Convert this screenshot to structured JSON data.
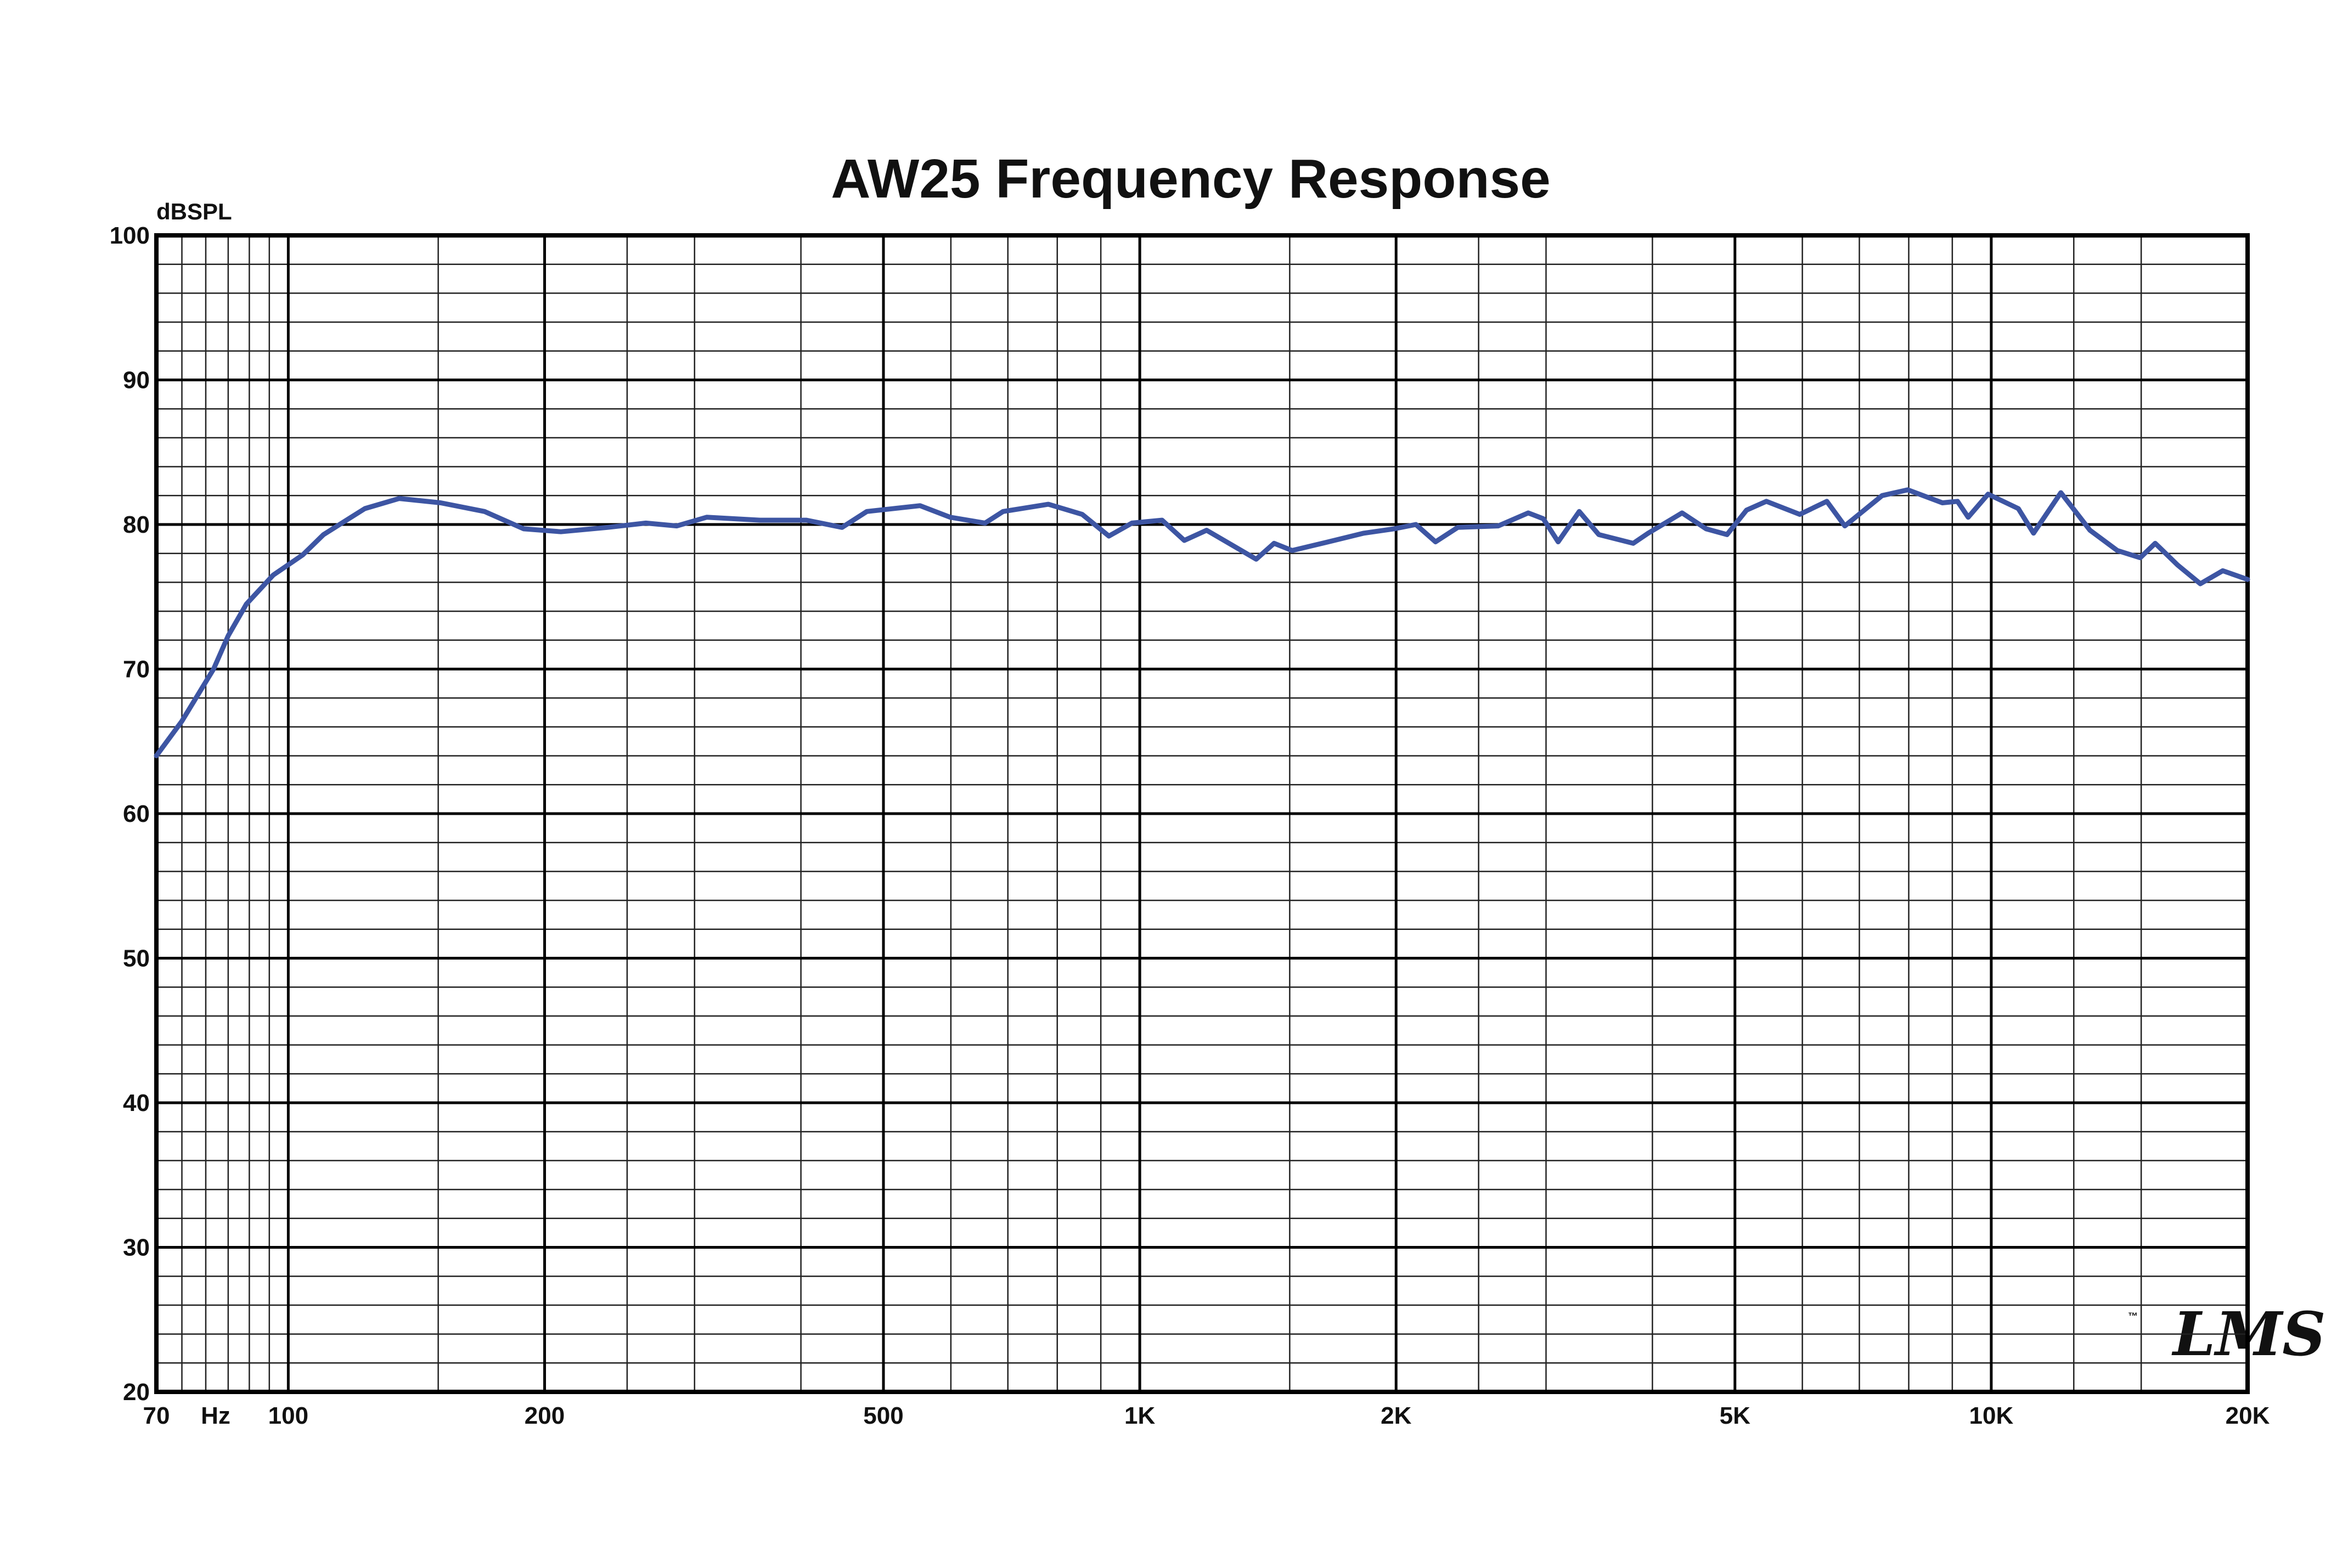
{
  "chart_data": {
    "type": "line",
    "title": "AW25 Frequency Response",
    "y_label": "dBSPL",
    "x_unit": "Hz",
    "logo": "LMS",
    "logo_mark": "™",
    "log_x": true,
    "grid": true,
    "color": "#3d55a3",
    "x": [
      70,
      75,
      81.7,
      85,
      89.3,
      96,
      104,
      110,
      123,
      135,
      151,
      170,
      189,
      209,
      237,
      263,
      286,
      310,
      358,
      406,
      447,
      478,
      552,
      599,
      658,
      691,
      781,
      856,
      920,
      979,
      1062,
      1128,
      1198,
      1370,
      1438,
      1510,
      1692,
      1833,
      1988,
      2110,
      2225,
      2363,
      2636,
      2859,
      2978,
      3100,
      3282,
      3460,
      3798,
      3955,
      4334,
      4625,
      4894,
      5160,
      5444,
      5958,
      6410,
      6730,
      7445,
      7979,
      8763,
      9128,
      9395,
      9914,
      10760,
      11210,
      12070,
      13060,
      14060,
      14960,
      15580,
      16550,
      17600,
      18700,
      20000
    ],
    "values": [
      64.0,
      66.4,
      70.0,
      72.3,
      74.5,
      76.5,
      77.9,
      79.3,
      81.1,
      81.8,
      81.5,
      80.9,
      79.7,
      79.5,
      79.8,
      80.1,
      79.9,
      80.5,
      80.3,
      80.3,
      79.8,
      80.9,
      81.3,
      80.5,
      80.1,
      80.9,
      81.4,
      80.7,
      79.2,
      80.1,
      80.3,
      78.9,
      79.6,
      77.6,
      78.7,
      78.2,
      78.9,
      79.4,
      79.7,
      80.0,
      78.8,
      79.8,
      79.9,
      80.8,
      80.4,
      78.8,
      80.9,
      79.3,
      78.7,
      79.4,
      80.8,
      79.7,
      79.3,
      81.0,
      81.6,
      80.7,
      81.6,
      79.9,
      82.0,
      82.4,
      81.5,
      81.6,
      80.5,
      82.1,
      81.1,
      79.4,
      82.2,
      79.6,
      78.2,
      77.7,
      78.7,
      77.2,
      75.9,
      76.8,
      76.2
    ],
    "xlim": [
      70,
      20000
    ],
    "ylim": [
      20,
      100
    ],
    "xticks": [
      70,
      100,
      200,
      500,
      {
        "value": 1000,
        "label": "1K"
      },
      {
        "value": 2000,
        "label": "2K"
      },
      {
        "value": 5000,
        "label": "5K"
      },
      {
        "value": 10000,
        "label": "10K"
      },
      {
        "value": 20000,
        "label": "20K"
      }
    ],
    "yticks": [
      20,
      30,
      40,
      50,
      60,
      70,
      80,
      90,
      100
    ],
    "x_minor_grid": [
      75,
      80,
      85,
      90,
      95,
      150,
      250,
      300,
      400,
      600,
      700,
      800,
      900,
      1500,
      2500,
      3000,
      4000,
      6000,
      7000,
      8000,
      9000,
      12500,
      15000
    ],
    "y_minor_grid": [
      22,
      24,
      26,
      28,
      32,
      34,
      36,
      38,
      42,
      44,
      46,
      48,
      52,
      54,
      56,
      58,
      62,
      64,
      66,
      68,
      72,
      74,
      76,
      78,
      82,
      84,
      86,
      88,
      92,
      94,
      96,
      98
    ]
  }
}
